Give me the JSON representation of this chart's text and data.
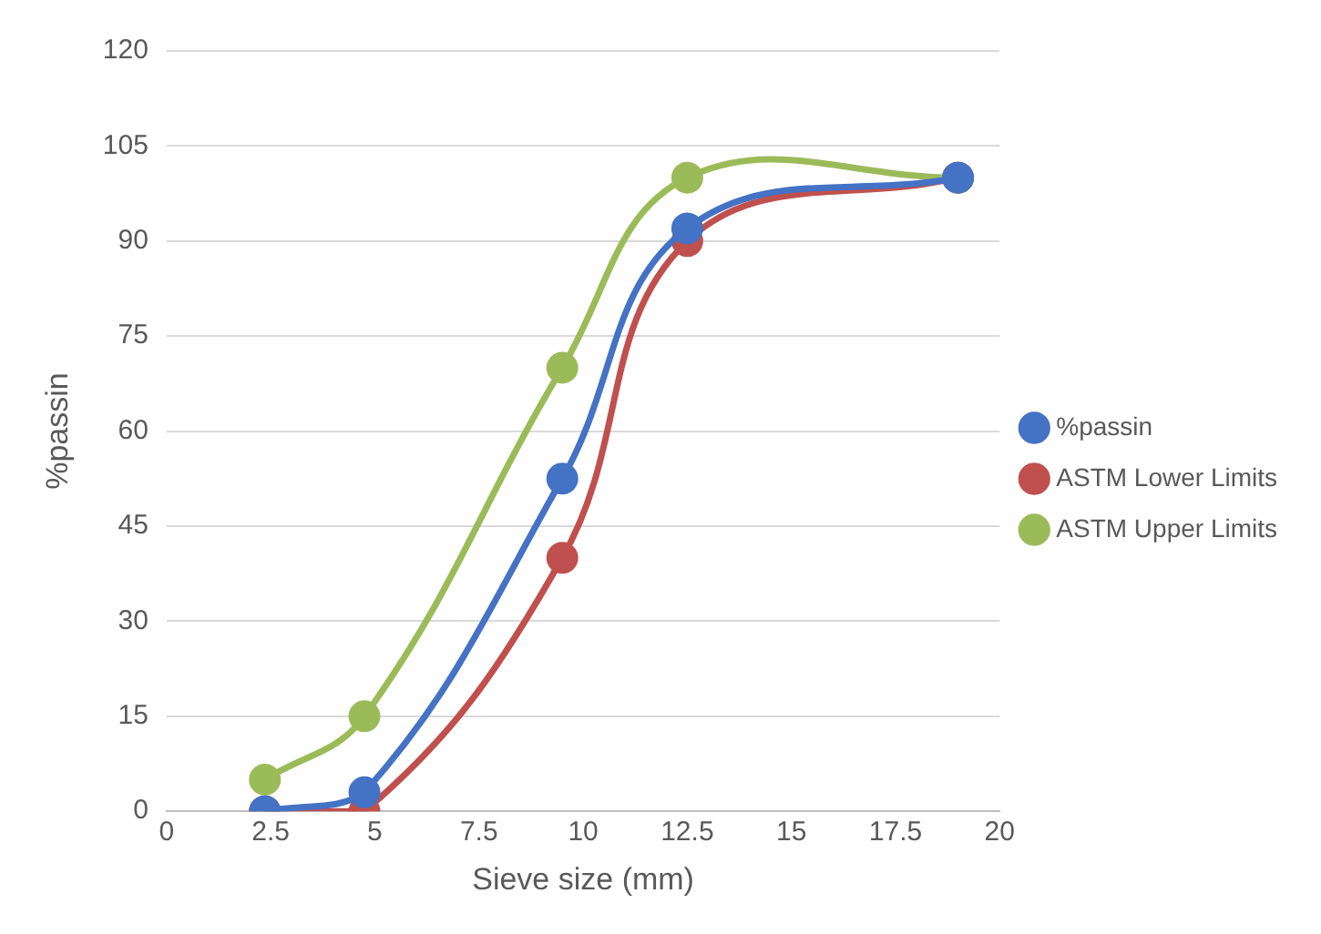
{
  "chart_data": {
    "type": "line",
    "xlabel": "Sieve size (mm)",
    "ylabel": "%passin",
    "xlim": [
      0,
      20
    ],
    "xticks": [
      0,
      2.5,
      5,
      7.5,
      10,
      12.5,
      15,
      17.5,
      20
    ],
    "ylim": [
      0,
      120
    ],
    "yticks": [
      0,
      15,
      30,
      45,
      60,
      75,
      90,
      105,
      120
    ],
    "grid": "y",
    "legend": "right",
    "marker": "circle",
    "series": [
      {
        "name": "%passin",
        "color": "#4472c4",
        "x": [
          2.36,
          4.75,
          9.5,
          12.5,
          19
        ],
        "values": [
          0,
          3,
          52.5,
          92,
          100
        ]
      },
      {
        "name": "ASTM Lower Limits",
        "color": "#c0504d",
        "x": [
          2.36,
          4.75,
          9.5,
          12.5,
          19
        ],
        "values": [
          0,
          0,
          40,
          90,
          100
        ]
      },
      {
        "name": "ASTM Upper Limits",
        "color": "#9bbb59",
        "x": [
          2.36,
          4.75,
          9.5,
          12.5,
          19
        ],
        "values": [
          5,
          15,
          70,
          100,
          100
        ]
      }
    ]
  }
}
